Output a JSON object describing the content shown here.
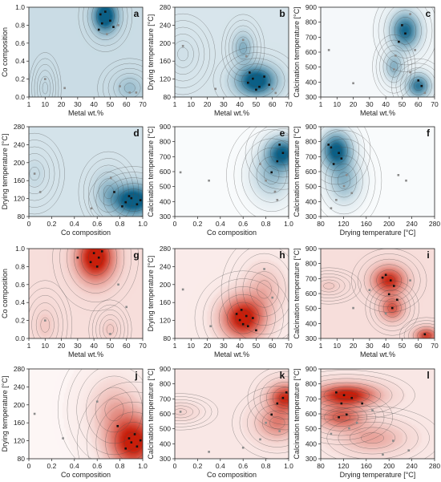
{
  "figure": {
    "colormaps": {
      "blue": [
        "#ffffff",
        "#0a5f86"
      ],
      "red": [
        "#ffffff",
        "#c81e0a"
      ]
    }
  },
  "chart_data": [
    {
      "type": "heatmap",
      "panel_label": "a",
      "cmap": "blue",
      "xlabel": "Metal wt.%",
      "ylabel": "Co composition",
      "xlim": [
        0,
        70
      ],
      "ylim": [
        0,
        1
      ],
      "xticks": [
        "1",
        "10",
        "20",
        "30",
        "40",
        "50",
        "60",
        "70"
      ],
      "yticks": [
        "0.0",
        "0.2",
        "0.4",
        "0.6",
        "0.8",
        "1.0"
      ],
      "hotspots": [
        {
          "x": 47,
          "y": 0.9,
          "sx": 5,
          "sy": 0.12,
          "w": 1.0
        },
        {
          "x": 62,
          "y": 0.1,
          "sx": 6,
          "sy": 0.1,
          "w": 0.2
        },
        {
          "x": 10,
          "y": 0.1,
          "sx": 3,
          "sy": 0.12,
          "w": 0.05
        }
      ],
      "base": 0.25,
      "points": [
        [
          44,
          0.92
        ],
        [
          47,
          0.95
        ],
        [
          50,
          0.85
        ],
        [
          52,
          0.78
        ],
        [
          45,
          0.82
        ],
        [
          55,
          0.8
        ],
        [
          48,
          0.7
        ],
        [
          43,
          0.75
        ],
        [
          62,
          0.05
        ],
        [
          56,
          0.12
        ],
        [
          10,
          0.2
        ],
        [
          22,
          0.1
        ],
        [
          66,
          0.05
        ]
      ]
    },
    {
      "type": "heatmap",
      "panel_label": "b",
      "cmap": "blue",
      "xlabel": "Metal wt.%",
      "ylabel": "Drying temperature [°C]",
      "xlim": [
        0,
        70
      ],
      "ylim": [
        80,
        300
      ],
      "xticks": [
        "1",
        "10",
        "20",
        "30",
        "40",
        "50",
        "60",
        "70"
      ],
      "yticks": [
        "80",
        "120",
        "160",
        "200",
        "240",
        "280"
      ],
      "hotspots": [
        {
          "x": 50,
          "y": 120,
          "sx": 8,
          "sy": 25,
          "w": 1.0
        },
        {
          "x": 42,
          "y": 200,
          "sx": 4,
          "sy": 25,
          "w": 0.35
        },
        {
          "x": 5,
          "y": 185,
          "sx": 6,
          "sy": 30,
          "w": 0.05
        }
      ],
      "base": 0.2,
      "points": [
        [
          45,
          115
        ],
        [
          48,
          125
        ],
        [
          52,
          105
        ],
        [
          55,
          130
        ],
        [
          50,
          98
        ],
        [
          58,
          110
        ],
        [
          46,
          140
        ],
        [
          60,
          100
        ],
        [
          42,
          220
        ],
        [
          44,
          180
        ],
        [
          25,
          100
        ],
        [
          5,
          205
        ],
        [
          62,
          90
        ]
      ]
    },
    {
      "type": "heatmap",
      "panel_label": "c",
      "cmap": "blue",
      "xlabel": "Metal wt.%",
      "ylabel": "Calcination temperature [°C]",
      "xlim": [
        0,
        70
      ],
      "ylim": [
        300,
        950
      ],
      "xticks": [
        "1",
        "10",
        "20",
        "30",
        "40",
        "50",
        "60",
        "70"
      ],
      "yticks": [
        "300",
        "400",
        "500",
        "600",
        "700",
        "800",
        "900"
      ],
      "hotspots": [
        {
          "x": 52,
          "y": 780,
          "sx": 6,
          "sy": 90,
          "w": 0.9
        },
        {
          "x": 60,
          "y": 380,
          "sx": 5,
          "sy": 60,
          "w": 0.8
        },
        {
          "x": 45,
          "y": 520,
          "sx": 4,
          "sy": 70,
          "w": 0.45
        }
      ],
      "base": 0.08,
      "points": [
        [
          50,
          820
        ],
        [
          52,
          760
        ],
        [
          55,
          900
        ],
        [
          48,
          700
        ],
        [
          46,
          600
        ],
        [
          58,
          640
        ],
        [
          60,
          420
        ],
        [
          62,
          380
        ],
        [
          64,
          330
        ],
        [
          45,
          500
        ],
        [
          5,
          640
        ],
        [
          20,
          400
        ],
        [
          55,
          480
        ]
      ]
    },
    {
      "type": "heatmap",
      "panel_label": "d",
      "cmap": "blue",
      "xlabel": "Co composition",
      "ylabel": "Drying temperature [°C]",
      "xlim": [
        0,
        1
      ],
      "ylim": [
        80,
        300
      ],
      "xticks": [
        "0",
        "0.2",
        "0.4",
        "0.6",
        "0.8",
        "1.0"
      ],
      "yticks": [
        "80",
        "120",
        "160",
        "200",
        "240",
        "280"
      ],
      "hotspots": [
        {
          "x": 0.92,
          "y": 120,
          "sx": 0.12,
          "sy": 25,
          "w": 1.0
        },
        {
          "x": 0.7,
          "y": 140,
          "sx": 0.08,
          "sy": 30,
          "w": 0.25
        },
        {
          "x": 0.05,
          "y": 185,
          "sx": 0.08,
          "sy": 30,
          "w": 0.05
        }
      ],
      "base": 0.22,
      "points": [
        [
          0.85,
          115
        ],
        [
          0.9,
          125
        ],
        [
          0.95,
          110
        ],
        [
          0.88,
          130
        ],
        [
          0.82,
          105
        ],
        [
          0.75,
          140
        ],
        [
          0.05,
          185
        ],
        [
          0.1,
          140
        ],
        [
          0.55,
          100
        ],
        [
          0.72,
          175
        ],
        [
          0.98,
          120
        ]
      ]
    },
    {
      "type": "heatmap",
      "panel_label": "e",
      "cmap": "blue",
      "xlabel": "Co composition",
      "ylabel": "Calcination temperature [°C]",
      "xlim": [
        0,
        1
      ],
      "ylim": [
        300,
        950
      ],
      "xticks": [
        "0",
        "0.2",
        "0.4",
        "0.6",
        "0.8",
        "1.0"
      ],
      "yticks": [
        "300",
        "400",
        "500",
        "600",
        "700",
        "800",
        "900"
      ],
      "hotspots": [
        {
          "x": 0.95,
          "y": 760,
          "sx": 0.1,
          "sy": 80,
          "w": 0.9
        },
        {
          "x": 0.85,
          "y": 600,
          "sx": 0.12,
          "sy": 120,
          "w": 0.4
        }
      ],
      "base": 0.05,
      "points": [
        [
          0.95,
          760
        ],
        [
          0.9,
          700
        ],
        [
          0.85,
          620
        ],
        [
          0.8,
          560
        ],
        [
          0.88,
          480
        ],
        [
          0.9,
          420
        ],
        [
          0.92,
          820
        ],
        [
          0.75,
          680
        ],
        [
          0.3,
          560
        ],
        [
          0.05,
          620
        ]
      ]
    },
    {
      "type": "heatmap",
      "panel_label": "f",
      "cmap": "blue",
      "xlabel": "Drying temperature [°C]",
      "ylabel": "Calcination temperature [°C]",
      "xlim": [
        80,
        300
      ],
      "ylim": [
        300,
        950
      ],
      "xticks": [
        "80",
        "120",
        "160",
        "200",
        "240",
        "280"
      ],
      "yticks": [
        "300",
        "400",
        "500",
        "600",
        "700",
        "800",
        "900"
      ],
      "hotspots": [
        {
          "x": 110,
          "y": 780,
          "sx": 20,
          "sy": 90,
          "w": 1.0
        },
        {
          "x": 125,
          "y": 560,
          "sx": 22,
          "sy": 110,
          "w": 0.45
        }
      ],
      "base": 0.05,
      "points": [
        [
          100,
          800
        ],
        [
          115,
          760
        ],
        [
          120,
          720
        ],
        [
          105,
          680
        ],
        [
          130,
          600
        ],
        [
          125,
          520
        ],
        [
          95,
          820
        ],
        [
          140,
          470
        ],
        [
          230,
          600
        ],
        [
          245,
          560
        ],
        [
          110,
          420
        ],
        [
          100,
          360
        ]
      ]
    },
    {
      "type": "heatmap",
      "panel_label": "g",
      "cmap": "red",
      "xlabel": "Metal wt.%",
      "ylabel": "Co composition",
      "xlim": [
        0,
        70
      ],
      "ylim": [
        0,
        1
      ],
      "xticks": [
        "1",
        "10",
        "20",
        "30",
        "40",
        "50",
        "60",
        "70"
      ],
      "yticks": [
        "0.0",
        "0.2",
        "0.4",
        "0.6",
        "0.8",
        "1.0"
      ],
      "hotspots": [
        {
          "x": 41,
          "y": 0.9,
          "sx": 8,
          "sy": 0.18,
          "w": 1.0
        },
        {
          "x": 10,
          "y": 0.15,
          "sx": 5,
          "sy": 0.15,
          "w": 0.1
        },
        {
          "x": 50,
          "y": 0.1,
          "sx": 4,
          "sy": 0.1,
          "w": 0.1
        }
      ],
      "base": 0.18,
      "points": [
        [
          40,
          0.95
        ],
        [
          43,
          0.9
        ],
        [
          38,
          0.85
        ],
        [
          45,
          0.97
        ],
        [
          42,
          0.8
        ],
        [
          10,
          0.2
        ],
        [
          50,
          0.05
        ],
        [
          60,
          0.35
        ],
        [
          55,
          0.6
        ],
        [
          30,
          0.9
        ]
      ]
    },
    {
      "type": "heatmap",
      "panel_label": "h",
      "cmap": "red",
      "xlabel": "Metal wt.%",
      "ylabel": "Drying temperature [°C]",
      "xlim": [
        0,
        70
      ],
      "ylim": [
        80,
        300
      ],
      "xticks": [
        "1",
        "10",
        "20",
        "30",
        "40",
        "50",
        "60",
        "70"
      ],
      "yticks": [
        "80",
        "120",
        "160",
        "200",
        "240",
        "280"
      ],
      "hotspots": [
        {
          "x": 42,
          "y": 130,
          "sx": 9,
          "sy": 35,
          "w": 1.0
        },
        {
          "x": 55,
          "y": 200,
          "sx": 8,
          "sy": 40,
          "w": 0.25
        }
      ],
      "base": 0.12,
      "points": [
        [
          40,
          125
        ],
        [
          42,
          115
        ],
        [
          44,
          135
        ],
        [
          38,
          140
        ],
        [
          45,
          110
        ],
        [
          48,
          130
        ],
        [
          41,
          150
        ],
        [
          50,
          100
        ],
        [
          5,
          200
        ],
        [
          22,
          110
        ],
        [
          60,
          180
        ],
        [
          55,
          250
        ]
      ]
    },
    {
      "type": "heatmap",
      "panel_label": "i",
      "cmap": "red",
      "xlabel": "Metal wt.%",
      "ylabel": "Calcination temperature [°C]",
      "xlim": [
        0,
        70
      ],
      "ylim": [
        300,
        950
      ],
      "xticks": [
        "1",
        "10",
        "20",
        "30",
        "40",
        "50",
        "60",
        "70"
      ],
      "yticks": [
        "300",
        "400",
        "500",
        "600",
        "700",
        "800",
        "900"
      ],
      "hotspots": [
        {
          "x": 42,
          "y": 720,
          "sx": 7,
          "sy": 70,
          "w": 0.8
        },
        {
          "x": 44,
          "y": 520,
          "sx": 5,
          "sy": 60,
          "w": 0.6
        },
        {
          "x": 65,
          "y": 320,
          "sx": 5,
          "sy": 40,
          "w": 0.7
        },
        {
          "x": 5,
          "y": 680,
          "sx": 6,
          "sy": 40,
          "w": 0.1
        }
      ],
      "base": 0.18,
      "points": [
        [
          40,
          760
        ],
        [
          43,
          720
        ],
        [
          45,
          680
        ],
        [
          38,
          740
        ],
        [
          42,
          620
        ],
        [
          44,
          520
        ],
        [
          47,
          580
        ],
        [
          40,
          480
        ],
        [
          64,
          330
        ],
        [
          30,
          650
        ],
        [
          20,
          520
        ],
        [
          55,
          720
        ]
      ]
    },
    {
      "type": "heatmap",
      "panel_label": "j",
      "cmap": "red",
      "xlabel": "Co composition",
      "ylabel": "Drying temperature [°C]",
      "xlim": [
        0,
        1
      ],
      "ylim": [
        80,
        300
      ],
      "xticks": [
        "0",
        "0.2",
        "0.4",
        "0.6",
        "0.8",
        "1.0"
      ],
      "yticks": [
        "80",
        "120",
        "160",
        "200",
        "240",
        "280"
      ],
      "hotspots": [
        {
          "x": 0.92,
          "y": 120,
          "sx": 0.15,
          "sy": 45,
          "w": 1.0
        },
        {
          "x": 0.75,
          "y": 200,
          "sx": 0.15,
          "sy": 50,
          "w": 0.3
        }
      ],
      "base": 0.08,
      "points": [
        [
          0.9,
          120
        ],
        [
          0.95,
          110
        ],
        [
          0.88,
          130
        ],
        [
          0.85,
          105
        ],
        [
          0.93,
          140
        ],
        [
          0.78,
          160
        ],
        [
          0.05,
          190
        ],
        [
          0.3,
          130
        ],
        [
          0.6,
          220
        ],
        [
          0.98,
          125
        ]
      ]
    },
    {
      "type": "heatmap",
      "panel_label": "k",
      "cmap": "red",
      "xlabel": "Co composition",
      "ylabel": "Calcination temperature [°C]",
      "xlim": [
        0,
        1
      ],
      "ylim": [
        300,
        950
      ],
      "xticks": [
        "0",
        "0.2",
        "0.4",
        "0.6",
        "0.8",
        "1.0"
      ],
      "yticks": [
        "300",
        "400",
        "500",
        "600",
        "700",
        "800",
        "900"
      ],
      "hotspots": [
        {
          "x": 0.97,
          "y": 740,
          "sx": 0.1,
          "sy": 70,
          "w": 0.8
        },
        {
          "x": 0.9,
          "y": 560,
          "sx": 0.12,
          "sy": 80,
          "w": 0.45
        },
        {
          "x": 0.05,
          "y": 640,
          "sx": 0.1,
          "sy": 40,
          "w": 0.1
        }
      ],
      "base": 0.15,
      "points": [
        [
          0.95,
          740
        ],
        [
          0.9,
          700
        ],
        [
          0.85,
          620
        ],
        [
          0.8,
          560
        ],
        [
          0.92,
          500
        ],
        [
          0.75,
          440
        ],
        [
          0.98,
          780
        ],
        [
          0.6,
          380
        ],
        [
          0.05,
          640
        ],
        [
          0.3,
          350
        ]
      ]
    },
    {
      "type": "heatmap",
      "panel_label": "l",
      "cmap": "red",
      "xlabel": "Drying temperature [°C]",
      "ylabel": "Calcination temperature [°C]",
      "xlim": [
        80,
        300
      ],
      "ylim": [
        300,
        950
      ],
      "xticks": [
        "80",
        "120",
        "160",
        "200",
        "240",
        "280"
      ],
      "yticks": [
        "300",
        "400",
        "500",
        "600",
        "700",
        "800",
        "900"
      ],
      "hotspots": [
        {
          "x": 130,
          "y": 760,
          "sx": 40,
          "sy": 55,
          "w": 0.95
        },
        {
          "x": 120,
          "y": 600,
          "sx": 30,
          "sy": 60,
          "w": 0.6
        },
        {
          "x": 180,
          "y": 450,
          "sx": 40,
          "sy": 70,
          "w": 0.3
        }
      ],
      "base": 0.15,
      "points": [
        [
          110,
          780
        ],
        [
          125,
          760
        ],
        [
          140,
          740
        ],
        [
          120,
          700
        ],
        [
          130,
          620
        ],
        [
          115,
          600
        ],
        [
          150,
          560
        ],
        [
          135,
          520
        ],
        [
          100,
          480
        ],
        [
          160,
          700
        ],
        [
          180,
          650
        ],
        [
          220,
          430
        ],
        [
          250,
          360
        ],
        [
          200,
          330
        ]
      ]
    }
  ]
}
